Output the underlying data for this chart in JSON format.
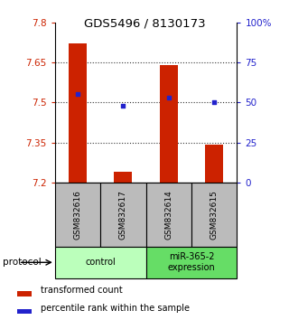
{
  "title": "GDS5496 / 8130173",
  "samples": [
    "GSM832616",
    "GSM832617",
    "GSM832614",
    "GSM832615"
  ],
  "groups": [
    {
      "label": "control",
      "color": "#bbffbb"
    },
    {
      "label": "miR-365-2\nexpression",
      "color": "#66dd66"
    }
  ],
  "transformed_counts": [
    7.72,
    7.24,
    7.64,
    7.34
  ],
  "percentile_ranks": [
    55,
    48,
    53,
    50
  ],
  "ylim": [
    7.2,
    7.8
  ],
  "y_ticks": [
    7.2,
    7.35,
    7.5,
    7.65,
    7.8
  ],
  "y_tick_labels": [
    "7.2",
    "7.35",
    "7.5",
    "7.65",
    "7.8"
  ],
  "right_y_ticks": [
    0,
    25,
    50,
    75,
    100
  ],
  "right_y_labels": [
    "0",
    "25",
    "50",
    "75",
    "100%"
  ],
  "bar_color": "#cc2200",
  "dot_color": "#2222cc",
  "bar_width": 0.4,
  "left_tick_color": "#cc2200",
  "right_tick_color": "#2222cc",
  "protocol_label": "protocol",
  "legend_bar_label": "transformed count",
  "legend_dot_label": "percentile rank within the sample",
  "sample_box_color": "#bbbbbb",
  "gridline_color": "#333333"
}
